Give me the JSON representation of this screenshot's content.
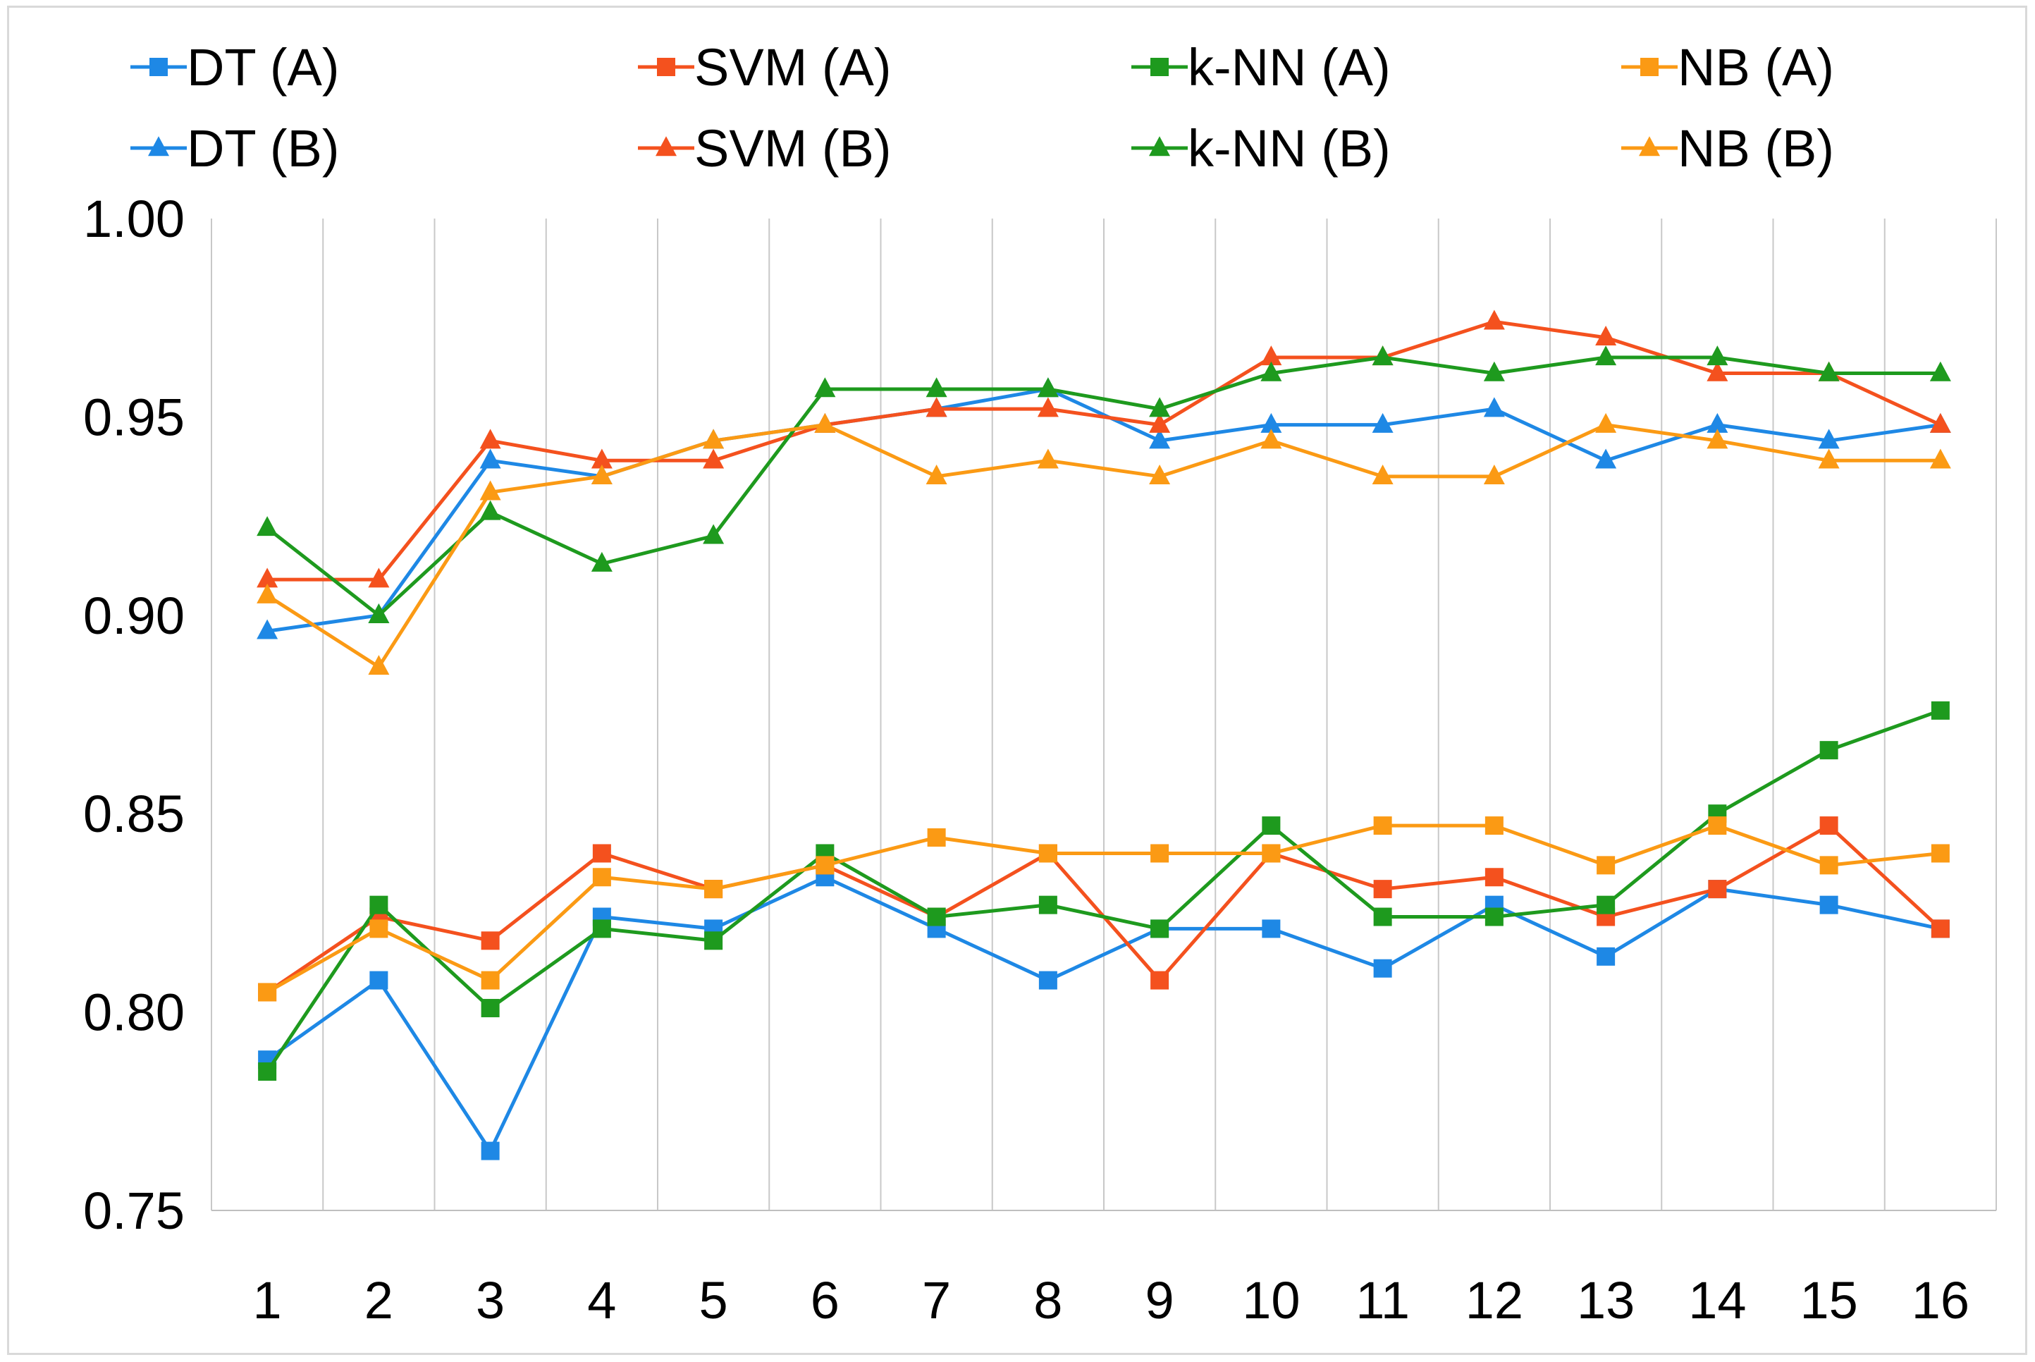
{
  "chart_data": {
    "type": "line",
    "title": "",
    "xlabel": "",
    "ylabel": "",
    "categories": [
      "1",
      "2",
      "3",
      "4",
      "5",
      "6",
      "7",
      "8",
      "9",
      "10",
      "11",
      "12",
      "13",
      "14",
      "15",
      "16"
    ],
    "ylim": [
      0.75,
      1.0
    ],
    "yticks": [
      "0.75",
      "0.80",
      "0.85",
      "0.90",
      "0.95",
      "1.00"
    ],
    "ytick_values": [
      0.75,
      0.8,
      0.85,
      0.9,
      0.95,
      1.0
    ],
    "grid": "vertical",
    "legend": "top",
    "series": [
      {
        "name": "DT (A)",
        "color": "#1e88e5",
        "marker": "square",
        "values": [
          0.788,
          0.808,
          0.765,
          0.824,
          0.821,
          0.834,
          0.821,
          0.808,
          0.821,
          0.821,
          0.811,
          0.827,
          0.814,
          0.831,
          0.827,
          0.821
        ]
      },
      {
        "name": "SVM (A)",
        "color": "#f4511e",
        "marker": "square",
        "values": [
          0.805,
          0.824,
          0.818,
          0.84,
          0.831,
          0.837,
          0.824,
          0.84,
          0.808,
          0.84,
          0.831,
          0.834,
          0.824,
          0.831,
          0.847,
          0.821
        ]
      },
      {
        "name": "k-NN (A)",
        "color": "#1e9a1e",
        "marker": "square",
        "values": [
          0.785,
          0.827,
          0.801,
          0.821,
          0.818,
          0.84,
          0.824,
          0.827,
          0.821,
          0.847,
          0.824,
          0.824,
          0.827,
          0.85,
          0.866,
          0.876
        ]
      },
      {
        "name": "NB (A)",
        "color": "#fb9a14",
        "marker": "square",
        "values": [
          0.805,
          0.821,
          0.808,
          0.834,
          0.831,
          0.837,
          0.844,
          0.84,
          0.84,
          0.84,
          0.847,
          0.847,
          0.837,
          0.847,
          0.837,
          0.84
        ]
      },
      {
        "name": "DT (B)",
        "color": "#1e88e5",
        "marker": "triangle",
        "values": [
          0.896,
          0.9,
          0.939,
          0.935,
          0.944,
          0.948,
          0.952,
          0.957,
          0.944,
          0.948,
          0.948,
          0.952,
          0.939,
          0.948,
          0.944,
          0.948
        ]
      },
      {
        "name": "SVM (B)",
        "color": "#f4511e",
        "marker": "triangle",
        "values": [
          0.909,
          0.909,
          0.944,
          0.939,
          0.939,
          0.948,
          0.952,
          0.952,
          0.948,
          0.965,
          0.965,
          0.974,
          0.97,
          0.961,
          0.961,
          0.948
        ]
      },
      {
        "name": "k-NN (B)",
        "color": "#1e9a1e",
        "marker": "triangle",
        "values": [
          0.922,
          0.9,
          0.926,
          0.913,
          0.92,
          0.957,
          0.957,
          0.957,
          0.952,
          0.961,
          0.965,
          0.961,
          0.965,
          0.965,
          0.961,
          0.961
        ]
      },
      {
        "name": "NB (B)",
        "color": "#fb9a14",
        "marker": "triangle",
        "values": [
          0.905,
          0.887,
          0.931,
          0.935,
          0.944,
          0.948,
          0.935,
          0.939,
          0.935,
          0.944,
          0.935,
          0.935,
          0.948,
          0.944,
          0.939,
          0.939
        ]
      }
    ]
  }
}
